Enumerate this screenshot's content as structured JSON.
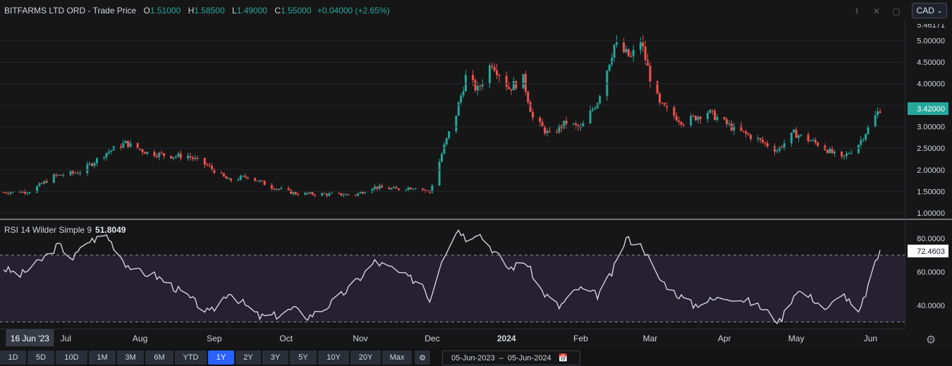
{
  "header": {
    "symbol": "BITFARMS LTD ORD",
    "price_type": "Trade Price",
    "open_label": "O",
    "open": "1.51000",
    "high_label": "H",
    "high": "1.58500",
    "low_label": "L",
    "low": "1.49000",
    "close_label": "C",
    "close": "1.55000",
    "change": "+0.04000 (+2.65%)"
  },
  "currency": "CAD",
  "rsi_legend": {
    "label": "RSI 14 Wilder Simple 9",
    "value": "51.8049"
  },
  "toolbar_icons": [
    "download-icon",
    "fullscreen-icon",
    "popout-icon"
  ],
  "time_axis": {
    "labels": [
      "Jul",
      "Aug",
      "Sep",
      "Oct",
      "Nov",
      "Dec",
      "2024",
      "Feb",
      "Mar",
      "Apr",
      "May",
      "Jun"
    ],
    "cursor_date": "16 Jun '23"
  },
  "ranges": [
    "1D",
    "5D",
    "10D",
    "1M",
    "3M",
    "6M",
    "YTD",
    "1Y",
    "2Y",
    "3Y",
    "5Y",
    "10Y",
    "20Y",
    "Max"
  ],
  "active_range": "1Y",
  "date_range": {
    "start": "05-Jun-2023",
    "separator": "–",
    "end": "05-Jun-2024"
  },
  "colors": {
    "up": "#26a69a",
    "down": "#ef5350",
    "background": "#161616",
    "rsi_band": "#7e57c2",
    "accent": "#2962ff"
  },
  "chart_data": [
    {
      "type": "candlestick",
      "title": "BITFARMS LTD ORD - Trade Price",
      "y_axis_labels": [
        "1.00000",
        "1.50000",
        "2.00000",
        "2.50000",
        "3.00000",
        "3.50000",
        "4.00000",
        "4.50000",
        "5.00000"
      ],
      "ylim": [
        0.9,
        5.45
      ],
      "last_price": "3.42000",
      "partial_top_label": "5.46171",
      "anchors": [
        [
          "2023-06-05",
          1.48
        ],
        [
          "2023-06-16",
          1.5
        ],
        [
          "2023-06-26",
          1.85
        ],
        [
          "2023-07-07",
          1.95
        ],
        [
          "2023-07-18",
          2.4
        ],
        [
          "2023-07-26",
          2.62
        ],
        [
          "2023-08-04",
          2.4
        ],
        [
          "2023-08-14",
          2.32
        ],
        [
          "2023-08-21",
          2.32
        ],
        [
          "2023-08-29",
          2.1
        ],
        [
          "2023-09-07",
          1.75
        ],
        [
          "2023-09-15",
          1.85
        ],
        [
          "2023-09-25",
          1.6
        ],
        [
          "2023-10-05",
          1.45
        ],
        [
          "2023-10-18",
          1.43
        ],
        [
          "2023-10-30",
          1.42
        ],
        [
          "2023-11-06",
          1.6
        ],
        [
          "2023-11-16",
          1.55
        ],
        [
          "2023-11-24",
          1.6
        ],
        [
          "2023-11-30",
          1.48
        ],
        [
          "2023-12-06",
          2.55
        ],
        [
          "2023-12-11",
          3.3
        ],
        [
          "2023-12-15",
          4.15
        ],
        [
          "2023-12-20",
          3.85
        ],
        [
          "2023-12-26",
          4.5
        ],
        [
          "2024-01-02",
          3.9
        ],
        [
          "2024-01-08",
          4.1
        ],
        [
          "2024-01-12",
          3.2
        ],
        [
          "2024-01-19",
          2.8
        ],
        [
          "2024-01-26",
          3.1
        ],
        [
          "2024-02-01",
          2.95
        ],
        [
          "2024-02-08",
          3.6
        ],
        [
          "2024-02-15",
          4.9
        ],
        [
          "2024-02-22",
          4.6
        ],
        [
          "2024-02-26",
          5.0
        ],
        [
          "2024-03-01",
          4.15
        ],
        [
          "2024-03-05",
          3.5
        ],
        [
          "2024-03-15",
          3.1
        ],
        [
          "2024-03-25",
          3.35
        ],
        [
          "2024-04-05",
          2.95
        ],
        [
          "2024-04-15",
          2.7
        ],
        [
          "2024-04-23",
          2.45
        ],
        [
          "2024-04-30",
          2.85
        ],
        [
          "2024-05-10",
          2.6
        ],
        [
          "2024-05-20",
          2.25
        ],
        [
          "2024-05-27",
          2.6
        ],
        [
          "2024-06-05",
          3.42
        ]
      ]
    },
    {
      "type": "line",
      "title": "RSI 14 Wilder Simple 9",
      "y_axis_labels": [
        "40.0000",
        "60.0000",
        "80.0000"
      ],
      "ylim": [
        26,
        91
      ],
      "reference_lines": [
        30,
        70
      ],
      "last_value": "72.4603",
      "x": [
        "2023-06-05",
        "2023-06-12",
        "2023-06-20",
        "2023-06-28",
        "2023-07-04",
        "2023-07-10",
        "2023-07-18",
        "2023-07-26",
        "2023-07-31",
        "2023-08-07",
        "2023-08-14",
        "2023-08-22",
        "2023-08-30",
        "2023-09-07",
        "2023-09-14",
        "2023-09-20",
        "2023-09-28",
        "2023-10-04",
        "2023-10-10",
        "2023-10-17",
        "2023-10-24",
        "2023-10-31",
        "2023-11-07",
        "2023-11-14",
        "2023-11-20",
        "2023-11-27",
        "2023-11-30",
        "2023-12-05",
        "2023-12-12",
        "2023-12-15",
        "2023-12-20",
        "2023-12-27",
        "2024-01-02",
        "2024-01-09",
        "2024-01-16",
        "2024-01-23",
        "2024-01-31",
        "2024-02-08",
        "2024-02-14",
        "2024-02-20",
        "2024-02-27",
        "2024-03-04",
        "2024-03-11",
        "2024-03-19",
        "2024-03-26",
        "2024-04-03",
        "2024-04-10",
        "2024-04-17",
        "2024-04-24",
        "2024-05-01",
        "2024-05-08",
        "2024-05-14",
        "2024-05-20",
        "2024-05-27",
        "2024-06-05"
      ],
      "values": [
        62,
        58,
        66,
        76,
        68,
        78,
        82,
        65,
        60,
        58,
        52,
        44,
        35,
        48,
        40,
        33,
        34,
        38,
        33,
        38,
        46,
        55,
        66,
        62,
        57,
        53,
        43,
        68,
        86,
        80,
        84,
        72,
        62,
        66,
        48,
        39,
        50,
        46,
        59,
        80,
        75,
        57,
        48,
        40,
        43,
        45,
        43,
        38,
        30,
        49,
        44,
        37,
        48,
        34,
        73
      ]
    }
  ]
}
